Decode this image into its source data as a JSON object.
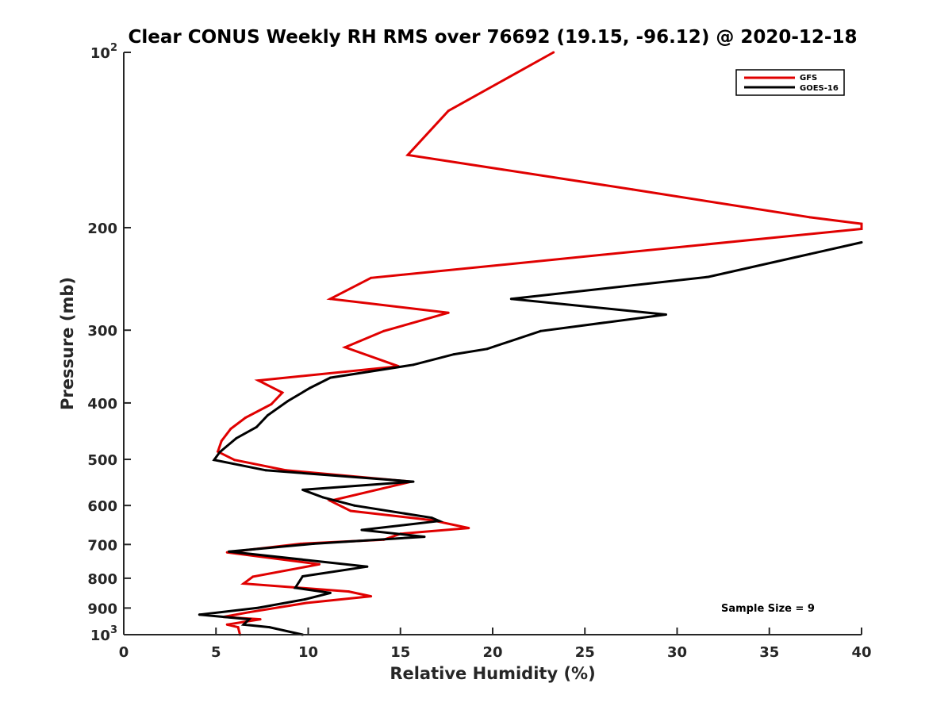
{
  "chart_data": {
    "type": "line",
    "title": "Clear CONUS Weekly RH RMS over 76692 (19.15, -96.12) @ 2020-12-18",
    "xlabel": "Relative Humidity (%)",
    "ylabel": "Pressure (mb)",
    "xlim": [
      0,
      40
    ],
    "ylim": [
      100,
      1000
    ],
    "yscale": "log",
    "yreversed": true,
    "x_ticks": [
      0,
      5,
      10,
      15,
      20,
      25,
      30,
      35,
      40
    ],
    "x_tick_labels": [
      "0",
      "5",
      "10",
      "15",
      "20",
      "25",
      "30",
      "35",
      "40"
    ],
    "y_ticks": [
      100,
      200,
      300,
      400,
      500,
      600,
      700,
      800,
      900,
      1000
    ],
    "y_tick_labels": [
      {
        "base": "10",
        "exp": "2"
      },
      {
        "base": "200",
        "exp": ""
      },
      {
        "base": "300",
        "exp": ""
      },
      {
        "base": "400",
        "exp": ""
      },
      {
        "base": "500",
        "exp": ""
      },
      {
        "base": "600",
        "exp": ""
      },
      {
        "base": "700",
        "exp": ""
      },
      {
        "base": "800",
        "exp": ""
      },
      {
        "base": "900",
        "exp": ""
      },
      {
        "base": "10",
        "exp": "3"
      }
    ],
    "grid": false,
    "legend_position": "top-right",
    "series": [
      {
        "name": "GFS",
        "color": "#e00000",
        "points": [
          [
            23.3,
            100
          ],
          [
            17.6,
            126
          ],
          [
            15.4,
            150
          ],
          [
            27.6,
            172
          ],
          [
            37.2,
            192
          ],
          [
            40.0,
            197
          ],
          [
            40.0,
            201
          ],
          [
            13.4,
            244
          ],
          [
            11.2,
            265
          ],
          [
            17.6,
            280
          ],
          [
            14.1,
            301
          ],
          [
            12.0,
            321
          ],
          [
            14.9,
            346
          ],
          [
            7.3,
            366
          ],
          [
            8.6,
            384
          ],
          [
            8.0,
            402
          ],
          [
            6.6,
            424
          ],
          [
            5.8,
            443
          ],
          [
            5.3,
            465
          ],
          [
            5.1,
            485
          ],
          [
            6.0,
            501
          ],
          [
            8.8,
            522
          ],
          [
            15.6,
            546
          ],
          [
            11.2,
            589
          ],
          [
            12.3,
            613
          ],
          [
            16.7,
            636
          ],
          [
            18.7,
            656
          ],
          [
            15.0,
            671
          ],
          [
            14.1,
            687
          ],
          [
            9.6,
            698
          ],
          [
            5.6,
            722
          ],
          [
            10.6,
            757
          ],
          [
            7.0,
            795
          ],
          [
            6.5,
            817
          ],
          [
            12.2,
            843
          ],
          [
            13.4,
            859
          ],
          [
            9.9,
            882
          ],
          [
            6.8,
            915
          ],
          [
            5.4,
            932
          ],
          [
            7.4,
            941
          ],
          [
            5.6,
            961
          ],
          [
            6.2,
            971
          ],
          [
            6.3,
            1000
          ]
        ]
      },
      {
        "name": "GOES-16",
        "color": "#000000",
        "points": [
          [
            40.0,
            212
          ],
          [
            37.2,
            222
          ],
          [
            31.7,
            243
          ],
          [
            21.0,
            265
          ],
          [
            29.4,
            282
          ],
          [
            22.6,
            301
          ],
          [
            19.7,
            323
          ],
          [
            17.9,
            330
          ],
          [
            15.7,
            344
          ],
          [
            11.2,
            362
          ],
          [
            10.1,
            377
          ],
          [
            8.9,
            397
          ],
          [
            7.8,
            420
          ],
          [
            7.2,
            440
          ],
          [
            6.1,
            460
          ],
          [
            5.2,
            486
          ],
          [
            4.9,
            501
          ],
          [
            7.7,
            522
          ],
          [
            15.7,
            546
          ],
          [
            9.7,
            564
          ],
          [
            10.8,
            581
          ],
          [
            12.5,
            600
          ],
          [
            16.7,
            630
          ],
          [
            17.1,
            638
          ],
          [
            12.9,
            661
          ],
          [
            16.3,
            679
          ],
          [
            10.3,
            698
          ],
          [
            5.7,
            720
          ],
          [
            13.2,
            764
          ],
          [
            9.7,
            794
          ],
          [
            9.3,
            831
          ],
          [
            11.2,
            848
          ],
          [
            9.8,
            870
          ],
          [
            7.3,
            899
          ],
          [
            4.1,
            924
          ],
          [
            6.8,
            941
          ],
          [
            6.5,
            961
          ],
          [
            7.9,
            971
          ],
          [
            9.7,
            1000
          ]
        ]
      }
    ],
    "annotations": [
      "Sample Size = 9"
    ]
  }
}
